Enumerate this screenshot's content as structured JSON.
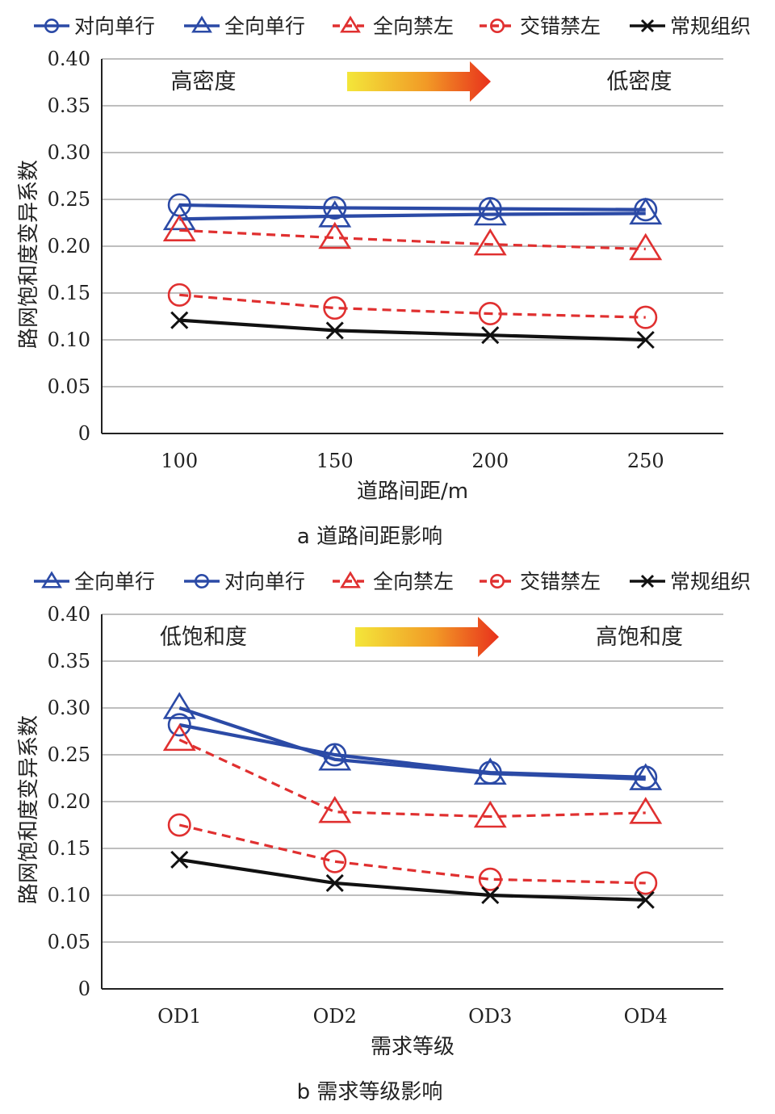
{
  "chart_data": [
    {
      "type": "line",
      "caption": "a 道路间距影响",
      "xlabel": "道路间距/m",
      "ylabel": "路网饱和度变异系数",
      "categories": [
        "100",
        "150",
        "200",
        "250"
      ],
      "ylim": [
        0,
        0.4
      ],
      "yticks": [
        "0",
        "0.05",
        "0.10",
        "0.15",
        "0.20",
        "0.25",
        "0.30",
        "0.35",
        "0.40"
      ],
      "grid": true,
      "legend_position": "top",
      "annotations": {
        "left": "高密度",
        "right": "低密度"
      },
      "series": [
        {
          "name": "对向单行",
          "values": [
            0.244,
            0.241,
            0.24,
            0.239
          ],
          "color": "#2b4aa6",
          "dash": false,
          "marker": "circle"
        },
        {
          "name": "全向单行",
          "values": [
            0.229,
            0.232,
            0.234,
            0.235
          ],
          "color": "#2b4aa6",
          "dash": false,
          "marker": "triangle"
        },
        {
          "name": "全向禁左",
          "values": [
            0.217,
            0.209,
            0.202,
            0.197
          ],
          "color": "#e03030",
          "dash": true,
          "marker": "triangle"
        },
        {
          "name": "交错禁左",
          "values": [
            0.148,
            0.134,
            0.128,
            0.124
          ],
          "color": "#e03030",
          "dash": true,
          "marker": "circle"
        },
        {
          "name": "常规组织",
          "values": [
            0.121,
            0.11,
            0.105,
            0.1
          ],
          "color": "#111111",
          "dash": false,
          "marker": "x"
        }
      ]
    },
    {
      "type": "line",
      "caption": "b 需求等级影响",
      "xlabel": "需求等级",
      "ylabel": "路网饱和度变异系数",
      "categories": [
        "OD1",
        "OD2",
        "OD3",
        "OD4"
      ],
      "ylim": [
        0,
        0.4
      ],
      "yticks": [
        "0",
        "0.05",
        "0.10",
        "0.15",
        "0.20",
        "0.25",
        "0.30",
        "0.35",
        "0.40"
      ],
      "grid": true,
      "legend_position": "top",
      "annotations": {
        "left": "低饱和度",
        "right": "高饱和度"
      },
      "series": [
        {
          "name": "全向单行",
          "values": [
            0.3,
            0.245,
            0.23,
            0.224
          ],
          "color": "#2b4aa6",
          "dash": false,
          "marker": "triangle"
        },
        {
          "name": "对向单行",
          "values": [
            0.282,
            0.25,
            0.231,
            0.226
          ],
          "color": "#2b4aa6",
          "dash": false,
          "marker": "circle"
        },
        {
          "name": "全向禁左",
          "values": [
            0.266,
            0.189,
            0.184,
            0.188
          ],
          "color": "#e03030",
          "dash": true,
          "marker": "triangle"
        },
        {
          "name": "交错禁左",
          "values": [
            0.175,
            0.136,
            0.117,
            0.113
          ],
          "color": "#e03030",
          "dash": true,
          "marker": "circle"
        },
        {
          "name": "常规组织",
          "values": [
            0.138,
            0.113,
            0.1,
            0.095
          ],
          "color": "#111111",
          "dash": false,
          "marker": "x"
        }
      ]
    }
  ]
}
